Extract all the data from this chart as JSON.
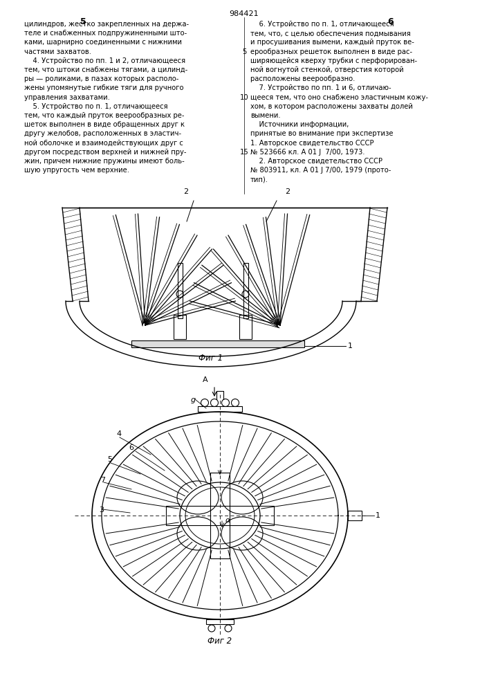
{
  "page_color": "#ffffff",
  "text_color": "#000000",
  "line_color": "#000000",
  "patent_number": "984421",
  "col_left_number": "5",
  "col_right_number": "6",
  "fig1_caption": "Фиг 1",
  "fig2_caption": "Фиг 2",
  "col_left_text": [
    "цилиндров, жестко закрепленных на держа-",
    "теле и снабженных подпружиненными што-",
    "ками, шарнирно соединенными с нижними",
    "частями захватов.",
    "    4. Устройство по пп. 1 и 2, отличающееся",
    "тем, что штоки снабжены тягами, а цилинд-",
    "ры — роликами, в пазах которых располо-",
    "жены упомянутые гибкие тяги для ручного",
    "управления захватами.",
    "    5. Устройство по п. 1, отличающееся",
    "тем, что каждый пруток веерообразных ре-",
    "шеток выполнен в виде обращенных друг к",
    "другу желобов, расположенных в эластич-",
    "ной оболочке и взаимодействующих друг с",
    "другом посредством верхней и нижней пру-",
    "жин, причем нижние пружины имеют боль-",
    "шую упругость чем верхние."
  ],
  "col_right_text": [
    "    6. Устройство по п. 1, отличающееся",
    "тем, что, с целью обеспечения подмывания",
    "и просушивания вымени, каждый пруток ве-",
    "ерообразных решеток выполнен в виде рас-",
    "ширяющейся кверху трубки с перфорирован-",
    "ной вогнутой стенкой, отверстия которой",
    "расположены веерообразно.",
    "    7. Устройство по пп. 1 и 6, отличаю-",
    "щееся тем, что оно снабжено эластичным кожу-",
    "хом, в котором расположены захваты долей",
    "вымени.",
    "    Источники информации,",
    "принятые во внимание при экспертизе",
    "1. Авторское свидетельство СССР",
    "№ 523666 кл. А 01 J  7/00, 1973.",
    "    2. Авторское свидетельство СССР",
    "№ 803911, кл. А 01 J 7/00, 1979 (прото-",
    "тип)."
  ]
}
